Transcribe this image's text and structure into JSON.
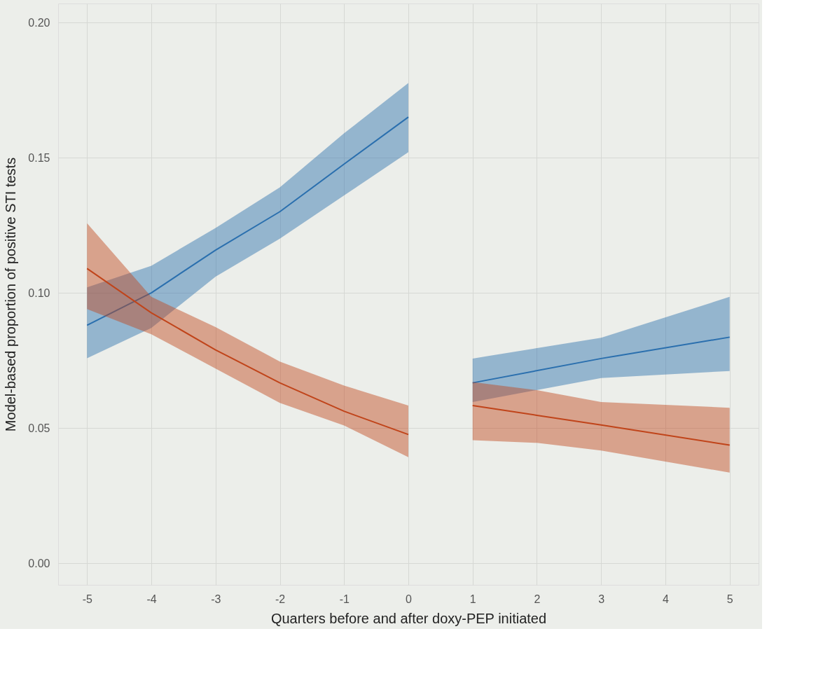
{
  "chart_data": {
    "type": "line",
    "xlabel": "Quarters before and after doxy-PEP initiated",
    "ylabel": "Model-based proportion of positive STI tests",
    "xlim": [
      -5.45,
      5.45
    ],
    "ylim": [
      -0.008,
      0.207
    ],
    "xticks": [
      -5,
      -4,
      -3,
      -2,
      -1,
      0,
      1,
      2,
      3,
      4,
      5
    ],
    "yticks": [
      {
        "value": 0,
        "label": "0.00"
      },
      0.05,
      {
        "value": 0.1,
        "label": "0.10"
      },
      0.15,
      {
        "value": 0.2,
        "label": "0.20"
      }
    ],
    "grid": true,
    "marker": "none",
    "line_style": "solid",
    "series": [
      {
        "color": "#2a6fae",
        "x": [
          -5,
          -4,
          -3,
          -2,
          -1,
          0
        ],
        "values": [
          0.088,
          0.1,
          0.1158,
          0.13,
          0.1476,
          0.165
        ],
        "lower": [
          0.0758,
          0.087,
          0.106,
          0.12,
          0.136,
          0.152
        ],
        "upper": [
          0.102,
          0.11,
          0.124,
          0.139,
          0.159,
          0.1776
        ]
      },
      {
        "color": "#c0441a",
        "x": [
          -5,
          -4,
          -3,
          -2,
          -1,
          0
        ],
        "values": [
          0.109,
          0.0926,
          0.0789,
          0.0667,
          0.0562,
          0.0476
        ],
        "lower": [
          0.094,
          0.0847,
          0.072,
          0.0593,
          0.0509,
          0.0392
        ],
        "upper": [
          0.1257,
          0.0985,
          0.0873,
          0.0746,
          0.0657,
          0.0583
        ]
      },
      {
        "color": "#2a6fae",
        "x": [
          1,
          3,
          5
        ],
        "values": [
          0.0667,
          0.0757,
          0.0836
        ],
        "lower": [
          0.0596,
          0.0685,
          0.0711
        ],
        "upper": [
          0.0757,
          0.0834,
          0.0985
        ]
      },
      {
        "color": "#c0441a",
        "x": [
          1,
          2,
          3,
          5
        ],
        "values": [
          0.0583,
          0.0547,
          0.0511,
          0.0437
        ],
        "lower": [
          0.0455,
          0.0445,
          0.0417,
          0.0335
        ],
        "upper": [
          0.067,
          0.064,
          0.0596,
          0.0575
        ]
      }
    ]
  }
}
